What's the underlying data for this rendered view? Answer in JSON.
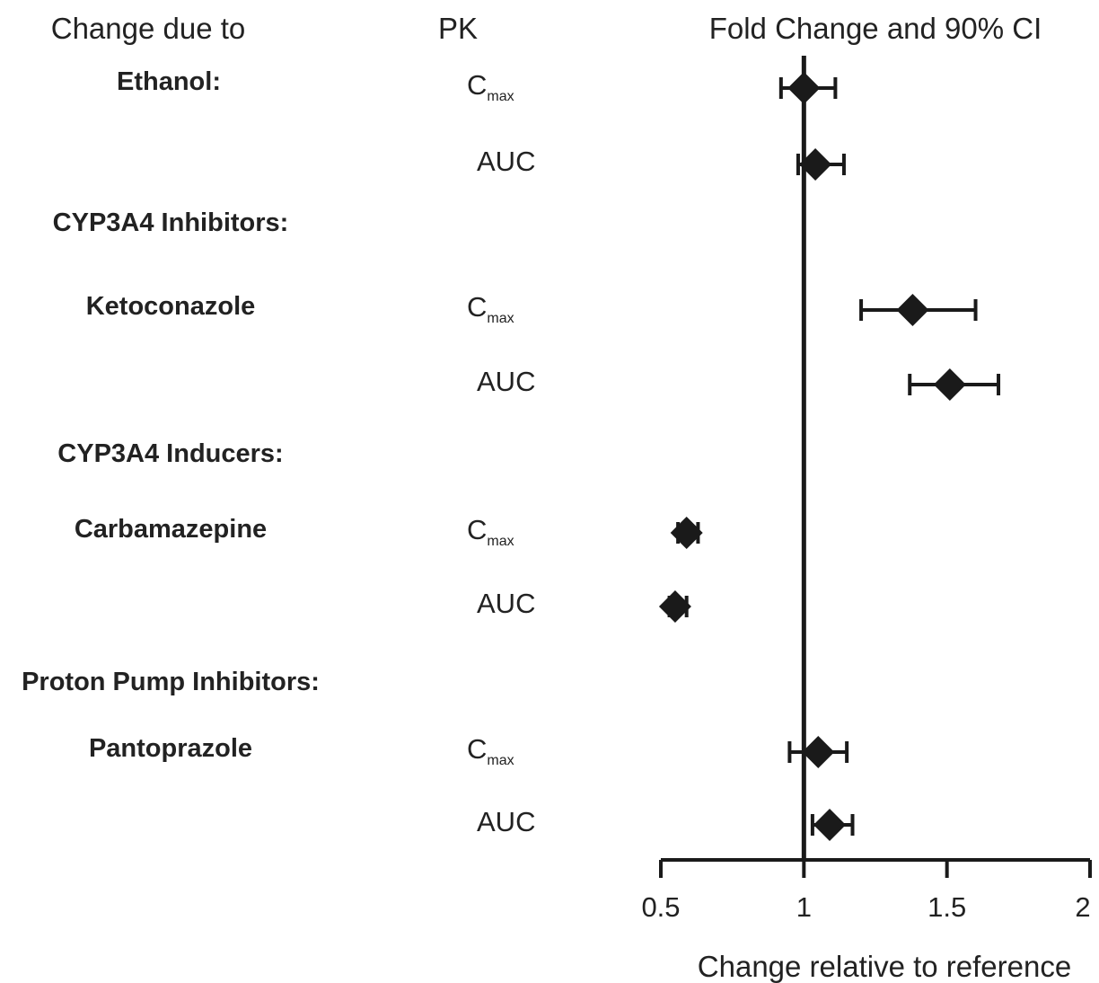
{
  "header": {
    "col1": "Change due to",
    "col2": "PK",
    "col3": "Fold Change and 90% CI"
  },
  "chart_data": {
    "type": "forest",
    "title": "",
    "xlabel": "Change relative to reference",
    "xlim": [
      0.5,
      2
    ],
    "xticks": [
      0.5,
      1,
      1.5,
      2
    ],
    "xtick_labels": [
      "0.5",
      "1",
      "1.5",
      "2"
    ],
    "reference_line": 1,
    "marker": "diamond",
    "color": "#1a1a1a",
    "rows": [
      {
        "kind": "group",
        "label": "Ethanol:",
        "pk": "C",
        "pk_sub": "max",
        "estimate": 1.0,
        "ci": [
          0.92,
          1.11
        ]
      },
      {
        "kind": "item",
        "label": "",
        "pk": "AUC",
        "pk_sub": "",
        "estimate": 1.04,
        "ci": [
          0.98,
          1.14
        ]
      },
      {
        "kind": "header",
        "label": "CYP3A4 Inhibitors:"
      },
      {
        "kind": "item",
        "label": "Ketoconazole",
        "pk": "C",
        "pk_sub": "max",
        "estimate": 1.38,
        "ci": [
          1.2,
          1.6
        ]
      },
      {
        "kind": "item",
        "label": "",
        "pk": "AUC",
        "pk_sub": "",
        "estimate": 1.51,
        "ci": [
          1.37,
          1.68
        ]
      },
      {
        "kind": "header",
        "label": "CYP3A4 Inducers:"
      },
      {
        "kind": "item",
        "label": "Carbamazepine",
        "pk": "C",
        "pk_sub": "max",
        "estimate": 0.59,
        "ci": [
          0.56,
          0.63
        ]
      },
      {
        "kind": "item",
        "label": "",
        "pk": "AUC",
        "pk_sub": "",
        "estimate": 0.55,
        "ci": [
          0.53,
          0.59
        ]
      },
      {
        "kind": "header",
        "label": "Proton Pump Inhibitors:"
      },
      {
        "kind": "item",
        "label": "Pantoprazole",
        "pk": "C",
        "pk_sub": "max",
        "estimate": 1.05,
        "ci": [
          0.95,
          1.15
        ]
      },
      {
        "kind": "item",
        "label": "",
        "pk": "AUC",
        "pk_sub": "",
        "estimate": 1.09,
        "ci": [
          1.03,
          1.17
        ]
      }
    ]
  }
}
